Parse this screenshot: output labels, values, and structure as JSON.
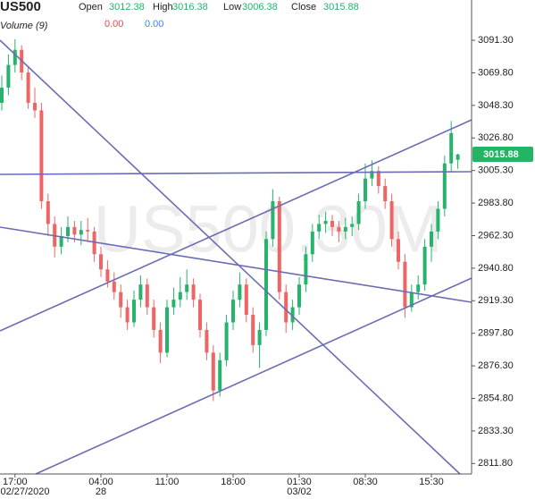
{
  "header": {
    "symbol": "US500",
    "open_label": "Open",
    "high_label": "High",
    "low_label": "Low",
    "close_label": "Close",
    "volume_label": "Volume (9)",
    "volume_values": [
      "0.00",
      "0.00"
    ],
    "watermark": "US500,30M"
  },
  "chart_data": {
    "type": "candlestick",
    "up_color": "#26b36b",
    "down_color": "#ef6464",
    "categories": [
      null,
      null,
      "17:00",
      null,
      null,
      null,
      null,
      null,
      null,
      null,
      null,
      null,
      null,
      null,
      null,
      "04:00",
      null,
      null,
      null,
      null,
      null,
      null,
      null,
      null,
      null,
      "11:00",
      null,
      null,
      null,
      null,
      null,
      null,
      null,
      null,
      null,
      "18:00",
      null,
      null,
      null,
      null,
      null,
      null,
      null,
      null,
      null,
      "01:30",
      null,
      null,
      null,
      null,
      null,
      null,
      null,
      null,
      null,
      "08:30",
      null,
      null,
      null,
      null,
      null,
      null,
      null,
      null,
      null,
      "15:30",
      null,
      null,
      null,
      null
    ],
    "dates": [
      null,
      null,
      "02/27/2020",
      null,
      null,
      null,
      null,
      null,
      null,
      null,
      null,
      null,
      null,
      null,
      null,
      "28",
      null,
      null,
      null,
      null,
      null,
      null,
      null,
      null,
      null,
      null,
      null,
      null,
      null,
      null,
      null,
      null,
      null,
      null,
      null,
      null,
      null,
      null,
      null,
      null,
      null,
      null,
      null,
      null,
      null,
      "03/02",
      null,
      null,
      null,
      null,
      null,
      null,
      null,
      null,
      null,
      null,
      null,
      null,
      null,
      null,
      null,
      null,
      null,
      null,
      null,
      null,
      null,
      null,
      null,
      null
    ],
    "open": [
      3050,
      3060,
      3075,
      3085,
      3070,
      3050,
      3045,
      2985,
      2970,
      2955,
      2962,
      2968,
      2963,
      2966,
      2965,
      2950,
      2940,
      2932,
      2925,
      2915,
      2905,
      2920,
      2930,
      2915,
      2900,
      2885,
      2915,
      2920,
      2925,
      2930,
      2920,
      2900,
      2885,
      2860,
      2880,
      2905,
      2920,
      2930,
      2910,
      2890,
      2900,
      2960,
      2985,
      2925,
      2905,
      2915,
      2930,
      2950,
      2965,
      2970,
      2972,
      2968,
      2965,
      2968,
      2970,
      2985,
      3000,
      3005,
      2995,
      2985,
      2960,
      2945,
      2915,
      2925,
      2930,
      2955,
      2965,
      2980,
      3010,
      3012.38
    ],
    "high": [
      3068,
      3082,
      3092,
      3088,
      3074,
      3060,
      3050,
      2990,
      2975,
      2968,
      2975,
      2972,
      2972,
      2974,
      2968,
      2955,
      2946,
      2938,
      2930,
      2920,
      2926,
      2936,
      2934,
      2920,
      2905,
      2920,
      2928,
      2935,
      2940,
      2934,
      2924,
      2905,
      2890,
      2885,
      2910,
      2926,
      2938,
      2934,
      2915,
      2905,
      2965,
      2993,
      2988,
      2930,
      2920,
      2935,
      2955,
      2970,
      2976,
      2978,
      2976,
      2972,
      2974,
      2975,
      2990,
      3010,
      3012,
      3008,
      3000,
      2990,
      2965,
      2950,
      2930,
      2936,
      2960,
      2970,
      2985,
      3015,
      3038,
      3016.38
    ],
    "low": [
      3045,
      3055,
      3070,
      3065,
      3046,
      3040,
      2980,
      2962,
      2948,
      2950,
      2958,
      2958,
      2956,
      2958,
      2945,
      2935,
      2928,
      2920,
      2908,
      2900,
      2902,
      2915,
      2910,
      2895,
      2878,
      2882,
      2910,
      2915,
      2920,
      2915,
      2895,
      2880,
      2853,
      2856,
      2876,
      2900,
      2915,
      2905,
      2885,
      2875,
      2896,
      2955,
      2920,
      2898,
      2900,
      2910,
      2925,
      2945,
      2960,
      2964,
      2962,
      2958,
      2960,
      2962,
      2966,
      2980,
      2995,
      2990,
      2980,
      2955,
      2940,
      2908,
      2912,
      2920,
      2926,
      2945,
      2960,
      2975,
      3005,
      3006.38
    ],
    "close": [
      3060,
      3075,
      3085,
      3070,
      3050,
      3045,
      2985,
      2970,
      2955,
      2962,
      2968,
      2963,
      2966,
      2965,
      2950,
      2940,
      2932,
      2925,
      2915,
      2905,
      2920,
      2930,
      2915,
      2900,
      2885,
      2915,
      2920,
      2925,
      2930,
      2920,
      2900,
      2885,
      2860,
      2880,
      2905,
      2920,
      2930,
      2910,
      2890,
      2900,
      2960,
      2985,
      2925,
      2905,
      2915,
      2930,
      2950,
      2965,
      2970,
      2972,
      2968,
      2965,
      2968,
      2970,
      2985,
      3000,
      3005,
      2995,
      2985,
      2960,
      2945,
      2915,
      2925,
      2930,
      2955,
      2965,
      2980,
      3010,
      3030,
      3015.88
    ],
    "ylim": [
      2804.9,
      3117.9
    ],
    "yticks": [
      {
        "value": 3091.3,
        "label": "3091.30"
      },
      {
        "value": 3069.8,
        "label": "3069.80"
      },
      {
        "value": 3048.3,
        "label": "3048.30"
      },
      {
        "value": 3026.8,
        "label": "3026.80"
      },
      {
        "value": 3005.3,
        "label": "3005.30"
      },
      {
        "value": 2983.8,
        "label": "2983.80"
      },
      {
        "value": 2962.3,
        "label": "2962.30"
      },
      {
        "value": 2940.8,
        "label": "2940.80"
      },
      {
        "value": 2919.3,
        "label": "2919.30"
      },
      {
        "value": 2897.8,
        "label": "2897.80"
      },
      {
        "value": 2876.3,
        "label": "2876.30"
      },
      {
        "value": 2854.8,
        "label": "2854.80"
      },
      {
        "value": 2833.3,
        "label": "2833.30"
      },
      {
        "value": 2811.8,
        "label": "2811.80"
      }
    ]
  }
}
